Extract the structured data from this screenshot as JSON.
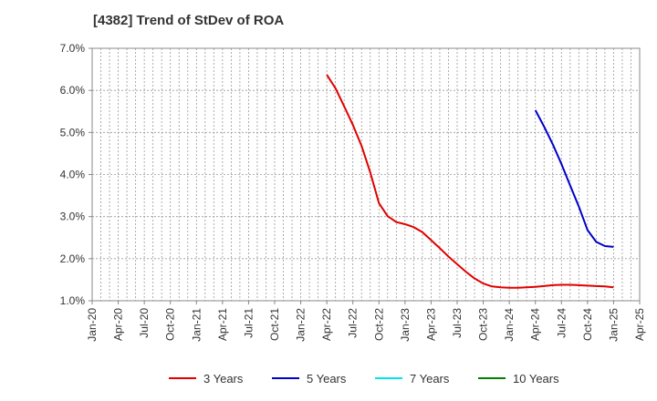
{
  "chart_data": {
    "type": "line",
    "title": "[4382]  Trend of StDev of ROA",
    "xlabel": "",
    "ylabel": "",
    "x_ticks": [
      "Jan-20",
      "Apr-20",
      "Jul-20",
      "Oct-20",
      "Jan-21",
      "Apr-21",
      "Jul-21",
      "Oct-21",
      "Jan-22",
      "Apr-22",
      "Jul-22",
      "Oct-22",
      "Jan-23",
      "Apr-23",
      "Jul-23",
      "Oct-23",
      "Jan-24",
      "Apr-24",
      "Jul-24",
      "Oct-24",
      "Jan-25",
      "Apr-25"
    ],
    "y_ticks": [
      "1.0%",
      "2.0%",
      "3.0%",
      "4.0%",
      "5.0%",
      "6.0%",
      "7.0%"
    ],
    "ylim": [
      1.0,
      7.0
    ],
    "xlim": [
      "2020-01",
      "2025-04"
    ],
    "grid": true,
    "legend_position": "bottom",
    "series": [
      {
        "name": "3 Years",
        "color": "#e00000",
        "x": [
          "2022-04",
          "2022-05",
          "2022-06",
          "2022-07",
          "2022-08",
          "2022-09",
          "2022-10",
          "2022-11",
          "2022-12",
          "2023-01",
          "2023-02",
          "2023-03",
          "2023-04",
          "2023-05",
          "2023-06",
          "2023-07",
          "2023-08",
          "2023-09",
          "2023-10",
          "2023-11",
          "2023-12",
          "2024-01",
          "2024-02",
          "2024-03",
          "2024-04",
          "2024-05",
          "2024-06",
          "2024-07",
          "2024-08",
          "2024-09",
          "2024-10",
          "2024-11",
          "2024-12",
          "2025-01"
        ],
        "values": [
          6.37,
          6.05,
          5.62,
          5.18,
          4.68,
          4.05,
          3.32,
          3.01,
          2.87,
          2.82,
          2.75,
          2.63,
          2.44,
          2.25,
          2.05,
          1.87,
          1.69,
          1.53,
          1.41,
          1.34,
          1.32,
          1.31,
          1.31,
          1.32,
          1.33,
          1.35,
          1.37,
          1.38,
          1.38,
          1.37,
          1.36,
          1.35,
          1.34,
          1.32
        ]
      },
      {
        "name": "5 Years",
        "color": "#0000cc",
        "x": [
          "2024-04",
          "2024-05",
          "2024-06",
          "2024-07",
          "2024-08",
          "2024-09",
          "2024-10",
          "2024-11",
          "2024-12",
          "2025-01"
        ],
        "values": [
          5.53,
          5.14,
          4.72,
          4.25,
          3.74,
          3.24,
          2.68,
          2.4,
          2.3,
          2.28
        ]
      },
      {
        "name": "7 Years",
        "color": "#00e5ee",
        "x": [],
        "values": []
      },
      {
        "name": "10 Years",
        "color": "#008000",
        "x": [],
        "values": []
      }
    ]
  }
}
